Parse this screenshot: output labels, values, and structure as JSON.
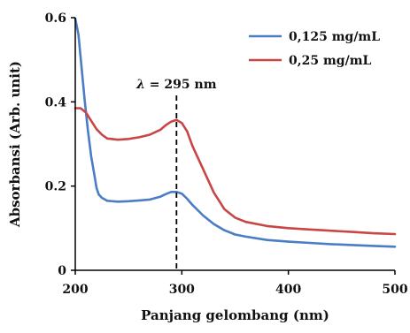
{
  "chart_data": {
    "type": "line",
    "xlabel": "Panjang gelombang (nm)",
    "ylabel": "Absorbansi (Arb. unit)",
    "xlim": [
      200,
      500
    ],
    "ylim": [
      0,
      0.6
    ],
    "x_ticks": [
      200,
      300,
      400,
      500
    ],
    "y_ticks": [
      0,
      0.2,
      0.4,
      0.6
    ],
    "x_tick_labels": [
      "200",
      "300",
      "400",
      "500"
    ],
    "y_tick_labels": [
      "0",
      "0.2",
      "0.4",
      "0.6"
    ],
    "grid": false,
    "legend_position": "top-right",
    "annotation": {
      "label_prefix": "λ",
      "label_rest": " = 295 nm",
      "x": 295,
      "line_style": "dashed"
    },
    "series": [
      {
        "name": "0,125 mg/mL",
        "color": "#4a7dc4",
        "x": [
          200,
          203,
          206,
          209,
          212,
          215,
          218,
          220,
          222,
          225,
          230,
          240,
          250,
          260,
          270,
          280,
          285,
          290,
          295,
          300,
          305,
          310,
          320,
          330,
          340,
          350,
          360,
          380,
          400,
          420,
          440,
          460,
          480,
          500
        ],
        "y": [
          0.598,
          0.56,
          0.48,
          0.4,
          0.33,
          0.27,
          0.225,
          0.195,
          0.18,
          0.172,
          0.165,
          0.163,
          0.164,
          0.166,
          0.168,
          0.175,
          0.181,
          0.186,
          0.186,
          0.182,
          0.17,
          0.155,
          0.13,
          0.11,
          0.095,
          0.085,
          0.08,
          0.072,
          0.068,
          0.065,
          0.062,
          0.06,
          0.058,
          0.056
        ]
      },
      {
        "name": "0,25 mg/mL",
        "color": "#c84646",
        "x": [
          200,
          205,
          210,
          215,
          220,
          225,
          230,
          240,
          250,
          260,
          270,
          280,
          285,
          290,
          295,
          300,
          305,
          310,
          320,
          330,
          340,
          350,
          360,
          380,
          400,
          420,
          440,
          460,
          480,
          500
        ],
        "y": [
          0.385,
          0.385,
          0.375,
          0.355,
          0.335,
          0.322,
          0.313,
          0.31,
          0.312,
          0.316,
          0.322,
          0.334,
          0.345,
          0.353,
          0.357,
          0.35,
          0.33,
          0.295,
          0.24,
          0.185,
          0.145,
          0.125,
          0.115,
          0.105,
          0.1,
          0.097,
          0.094,
          0.091,
          0.088,
          0.086
        ]
      }
    ]
  }
}
